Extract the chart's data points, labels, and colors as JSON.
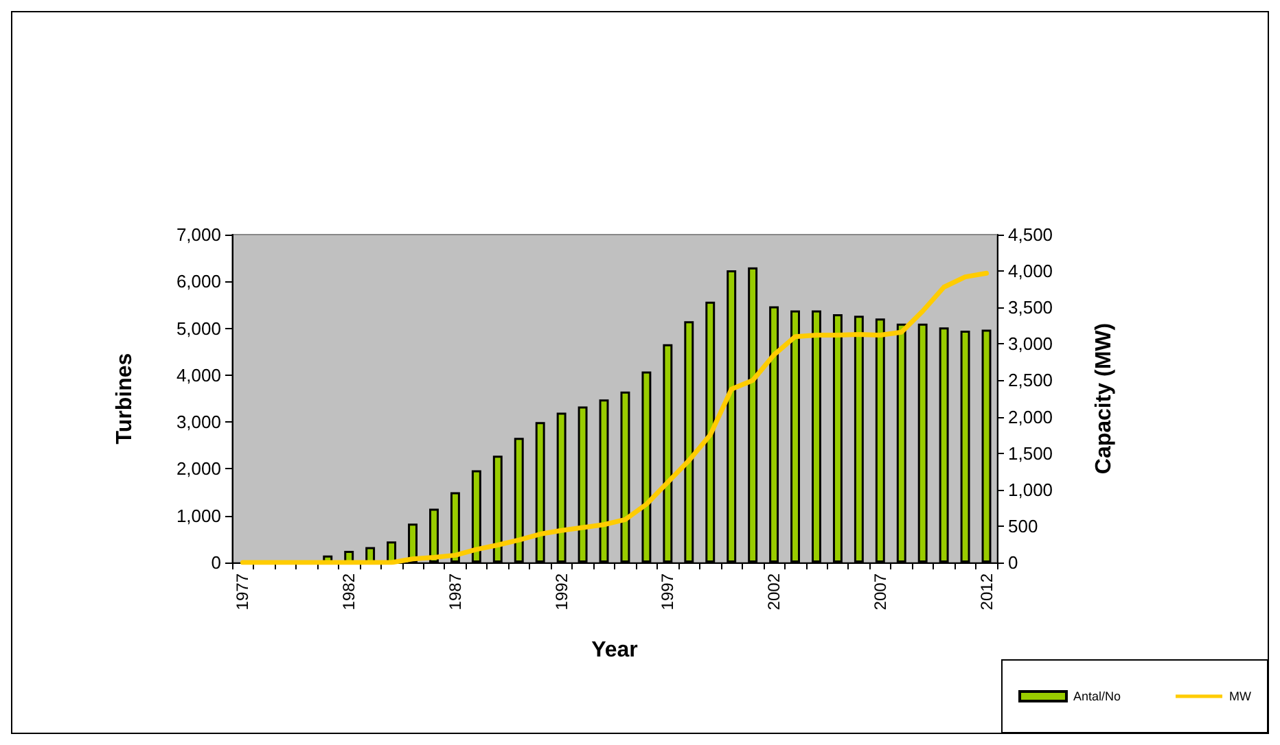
{
  "chart_data": {
    "type": "bar",
    "xlabel": "Year",
    "ylabel": "Turbines",
    "y2label": "Capacity (MW)",
    "categories": [
      "1977",
      null,
      null,
      null,
      null,
      "1982",
      null,
      null,
      null,
      null,
      "1987",
      null,
      null,
      null,
      null,
      "1992",
      null,
      null,
      null,
      null,
      "1997",
      null,
      null,
      null,
      null,
      "2002",
      null,
      null,
      null,
      null,
      "2007",
      null,
      null,
      null,
      null,
      "2012"
    ],
    "series": [
      {
        "name": "Antal/No",
        "color": "#99cc00",
        "values": [
          null,
          null,
          null,
          null,
          150,
          250,
          330,
          450,
          830,
          1150,
          1500,
          1970,
          2280,
          2660,
          3000,
          3200,
          3330,
          3480,
          3650,
          4080,
          4660,
          5150,
          5570,
          6240,
          6300,
          5470,
          5380,
          5380,
          5300,
          5270,
          5210,
          5100,
          5100,
          5020,
          4950,
          4970
        ]
      },
      {
        "name": "MW",
        "type": "line",
        "axis": "y2",
        "color": "#ffcc00",
        "values": [
          0,
          0,
          0,
          0,
          0,
          0,
          0,
          0,
          50,
          70,
          100,
          180,
          240,
          310,
          390,
          440,
          480,
          520,
          590,
          800,
          1100,
          1400,
          1750,
          2380,
          2500,
          2850,
          3100,
          3120,
          3120,
          3130,
          3120,
          3160,
          3450,
          3780,
          3920,
          3970
        ]
      }
    ],
    "ylim": [
      0,
      7000
    ],
    "yticks": [
      {
        "value": 0,
        "label": "0"
      },
      {
        "value": 1000,
        "label": "1,000"
      },
      {
        "value": 2000,
        "label": "2,000"
      },
      {
        "value": 3000,
        "label": "3,000"
      },
      {
        "value": 4000,
        "label": "4,000"
      },
      {
        "value": 5000,
        "label": "5,000"
      },
      {
        "value": 6000,
        "label": "6,000"
      },
      {
        "value": 7000,
        "label": "7,000"
      }
    ],
    "y2lim": [
      0,
      4500
    ],
    "y2ticks": [
      {
        "value": 0,
        "label": "0"
      },
      {
        "value": 500,
        "label": "500"
      },
      {
        "value": 1000,
        "label": "1,000"
      },
      {
        "value": 1500,
        "label": "1,500"
      },
      {
        "value": 2000,
        "label": "2,000"
      },
      {
        "value": 2500,
        "label": "2,500"
      },
      {
        "value": 3000,
        "label": "3,000"
      },
      {
        "value": 3500,
        "label": "3,500"
      },
      {
        "value": 4000,
        "label": "4,000"
      },
      {
        "value": 4500,
        "label": "4,500"
      }
    ],
    "grid": false,
    "legend": "bottom right",
    "marker": "none",
    "line_style": "solid"
  }
}
